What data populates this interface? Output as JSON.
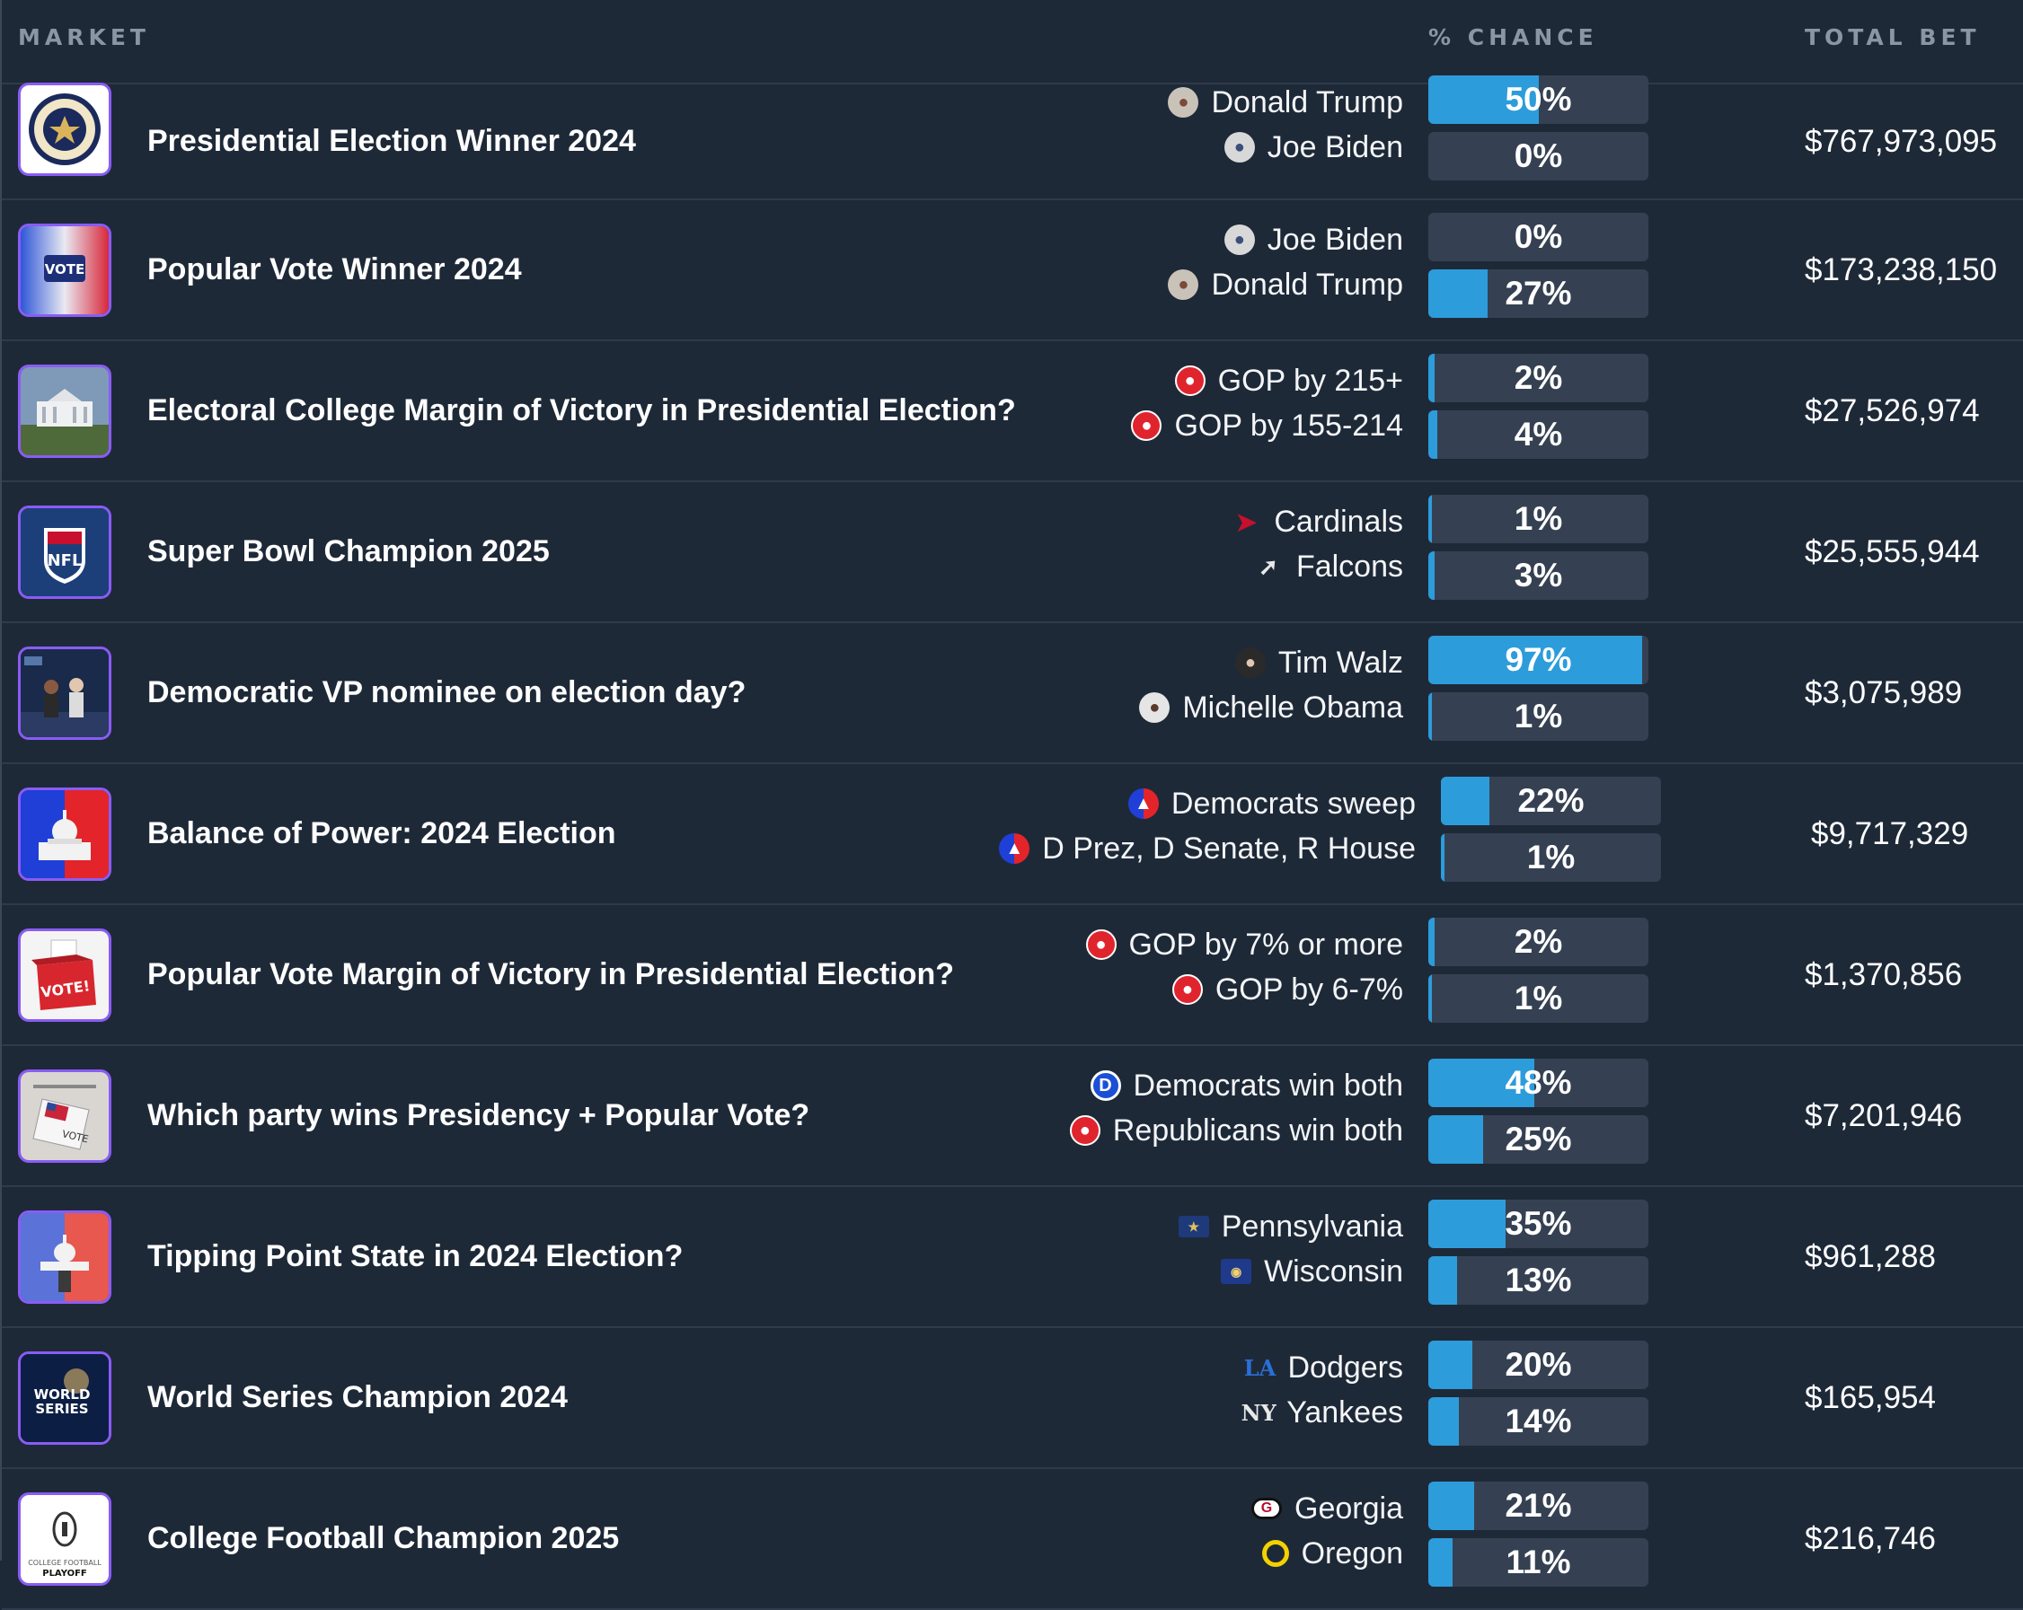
{
  "header": {
    "market": "MARKET",
    "chance": "% CHANCE",
    "total": "TOTAL BET"
  },
  "accent_color": "#2d9cdb",
  "thumb_border_color": "#8a5cf5",
  "markets": [
    {
      "title": "Presidential Election Winner 2024",
      "thumbnail": "presidential-seal-icon",
      "total": "$767,973,095",
      "options": [
        {
          "label": "Donald Trump",
          "icon": "trump-avatar-icon",
          "pct": "50%",
          "value": 50
        },
        {
          "label": "Joe Biden",
          "icon": "biden-avatar-icon",
          "pct": "0%",
          "value": 0
        }
      ]
    },
    {
      "title": "Popular Vote Winner 2024",
      "thumbnail": "vote-badge-icon",
      "total": "$173,238,150",
      "options": [
        {
          "label": "Joe Biden",
          "icon": "biden-avatar-icon",
          "pct": "0%",
          "value": 0
        },
        {
          "label": "Donald Trump",
          "icon": "trump-avatar-icon",
          "pct": "27%",
          "value": 27
        }
      ]
    },
    {
      "title": "Electoral College Margin of Victory in Presidential Election?",
      "thumbnail": "white-house-icon",
      "total": "$27,526,974",
      "options": [
        {
          "label": "GOP by 215+",
          "icon": "gop-elephant-icon",
          "pct": "2%",
          "value": 2
        },
        {
          "label": "GOP by 155-214",
          "icon": "gop-elephant-icon",
          "pct": "4%",
          "value": 4
        }
      ]
    },
    {
      "title": "Super Bowl Champion 2025",
      "thumbnail": "nfl-shield-icon",
      "total": "$25,555,944",
      "options": [
        {
          "label": "Cardinals",
          "icon": "cardinals-logo-icon",
          "pct": "1%",
          "value": 1
        },
        {
          "label": "Falcons",
          "icon": "falcons-logo-icon",
          "pct": "3%",
          "value": 3
        }
      ]
    },
    {
      "title": "Democratic VP nominee on election day?",
      "thumbnail": "rally-photo-icon",
      "total": "$3,075,989",
      "options": [
        {
          "label": "Tim Walz",
          "icon": "walz-avatar-icon",
          "pct": "97%",
          "value": 97
        },
        {
          "label": "Michelle Obama",
          "icon": "obama-avatar-icon",
          "pct": "1%",
          "value": 1
        }
      ]
    },
    {
      "title": "Balance of Power: 2024 Election",
      "thumbnail": "capitol-icon",
      "total": "$9,717,329",
      "options": [
        {
          "label": "Democrats sweep",
          "icon": "capitol-mini-icon",
          "pct": "22%",
          "value": 22
        },
        {
          "label": "D Prez, D Senate, R House",
          "icon": "capitol-mini-icon",
          "pct": "1%",
          "value": 1
        }
      ]
    },
    {
      "title": "Popular Vote Margin of Victory in Presidential Election?",
      "thumbnail": "ballot-box-icon",
      "total": "$1,370,856",
      "options": [
        {
          "label": "GOP by 7% or more",
          "icon": "gop-elephant-icon",
          "pct": "2%",
          "value": 2
        },
        {
          "label": "GOP by 6-7%",
          "icon": "gop-elephant-icon",
          "pct": "1%",
          "value": 1
        }
      ]
    },
    {
      "title": "Which party wins Presidency + Popular Vote?",
      "thumbnail": "vote-ballot-icon",
      "total": "$7,201,946",
      "options": [
        {
          "label": "Democrats win both",
          "icon": "dem-logo-icon",
          "pct": "48%",
          "value": 48
        },
        {
          "label": "Republicans win both",
          "icon": "gop-elephant-icon",
          "pct": "25%",
          "value": 25
        }
      ]
    },
    {
      "title": "Tipping Point State in 2024 Election?",
      "thumbnail": "capitol-split-icon",
      "total": "$961,288",
      "options": [
        {
          "label": "Pennsylvania",
          "icon": "pennsylvania-flag-icon",
          "pct": "35%",
          "value": 35
        },
        {
          "label": "Wisconsin",
          "icon": "wisconsin-flag-icon",
          "pct": "13%",
          "value": 13
        }
      ]
    },
    {
      "title": "World Series Champion 2024",
      "thumbnail": "world-series-icon",
      "total": "$165,954",
      "options": [
        {
          "label": "Dodgers",
          "icon": "dodgers-logo-icon",
          "pct": "20%",
          "value": 20
        },
        {
          "label": "Yankees",
          "icon": "yankees-logo-icon",
          "pct": "14%",
          "value": 14
        }
      ]
    },
    {
      "title": "College Football Champion 2025",
      "thumbnail": "cfp-trophy-icon",
      "total": "$216,746",
      "options": [
        {
          "label": "Georgia",
          "icon": "georgia-logo-icon",
          "pct": "21%",
          "value": 21
        },
        {
          "label": "Oregon",
          "icon": "oregon-logo-icon",
          "pct": "11%",
          "value": 11
        }
      ]
    }
  ]
}
